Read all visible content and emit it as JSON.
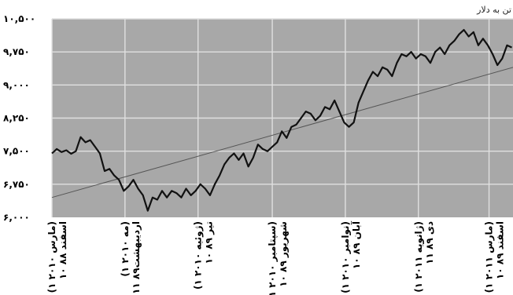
{
  "chart_data": {
    "type": "line",
    "unit_label": "تن به دلار",
    "y_ticks": [
      "۱۰,۵۰۰",
      "۹,۷۵۰",
      "۹,۰۰۰",
      "۸,۲۵۰",
      "۷,۵۰۰",
      "۶,۷۵۰",
      "۶,۰۰۰"
    ],
    "y_tick_values": [
      10500,
      9750,
      9000,
      8250,
      7500,
      6750,
      6000
    ],
    "ylim": [
      6000,
      10500
    ],
    "x_ticks": [
      [
        "۱۰ اسفند ۸۸",
        "(۱ مارس ۲۰۱۰)"
      ],
      [
        "۱۱ اردیبهشت۸۹",
        "(۱ مه ۲۰۱۰)"
      ],
      [
        "۱۰ تیر ۸۹",
        "(۱ ژوئیه ۲۰۱۰)"
      ],
      [
        "۱۰ شهریور ۸۹",
        "(۱ سپتامبر ۲۰۱۰)"
      ],
      [
        "۱۰ آبان ۸۹",
        "(۱ نوامبر ۲۰۱۰)"
      ],
      [
        "۱۱ دی ۸۹",
        "(۱ ژانویه ۲۰۱۱)"
      ],
      [
        "۱۰ اسفند ۸۹",
        "(۱ مارس ۲۰۱۱)"
      ]
    ],
    "x_tick_dates": [
      "2010-03-01",
      "2010-05-01",
      "2010-07-01",
      "2010-09-01",
      "2010-11-01",
      "2011-01-01",
      "2011-03-01"
    ],
    "x_range": [
      "2010-03-01",
      "2011-03-21"
    ],
    "grid": true,
    "colors": {
      "plot_bg": "#a8a8a8",
      "grid": "#e0e0e0",
      "line": "#111111",
      "trend": "#555555"
    },
    "series": [
      {
        "values": [
          [
            "2010-03-01",
            7450
          ],
          [
            "2010-03-05",
            7550
          ],
          [
            "2010-03-09",
            7480
          ],
          [
            "2010-03-13",
            7520
          ],
          [
            "2010-03-17",
            7440
          ],
          [
            "2010-03-21",
            7500
          ],
          [
            "2010-03-25",
            7820
          ],
          [
            "2010-03-29",
            7700
          ],
          [
            "2010-04-02",
            7750
          ],
          [
            "2010-04-06",
            7600
          ],
          [
            "2010-04-10",
            7450
          ],
          [
            "2010-04-14",
            7050
          ],
          [
            "2010-04-18",
            7100
          ],
          [
            "2010-04-22",
            6950
          ],
          [
            "2010-04-26",
            6850
          ],
          [
            "2010-04-30",
            6600
          ],
          [
            "2010-05-04",
            6700
          ],
          [
            "2010-05-08",
            6850
          ],
          [
            "2010-05-12",
            6650
          ],
          [
            "2010-05-16",
            6500
          ],
          [
            "2010-05-20",
            6150
          ],
          [
            "2010-05-24",
            6450
          ],
          [
            "2010-05-28",
            6400
          ],
          [
            "2010-06-01",
            6600
          ],
          [
            "2010-06-05",
            6450
          ],
          [
            "2010-06-09",
            6600
          ],
          [
            "2010-06-13",
            6550
          ],
          [
            "2010-06-17",
            6450
          ],
          [
            "2010-06-21",
            6650
          ],
          [
            "2010-06-25",
            6500
          ],
          [
            "2010-06-29",
            6600
          ],
          [
            "2010-07-03",
            6750
          ],
          [
            "2010-07-07",
            6650
          ],
          [
            "2010-07-11",
            6500
          ],
          [
            "2010-07-15",
            6750
          ],
          [
            "2010-07-19",
            6950
          ],
          [
            "2010-07-23",
            7200
          ],
          [
            "2010-07-27",
            7350
          ],
          [
            "2010-07-31",
            7450
          ],
          [
            "2010-08-04",
            7300
          ],
          [
            "2010-08-08",
            7450
          ],
          [
            "2010-08-12",
            7150
          ],
          [
            "2010-08-16",
            7350
          ],
          [
            "2010-08-20",
            7650
          ],
          [
            "2010-08-24",
            7550
          ],
          [
            "2010-08-28",
            7500
          ],
          [
            "2010-09-01",
            7600
          ],
          [
            "2010-09-05",
            7700
          ],
          [
            "2010-09-09",
            7950
          ],
          [
            "2010-09-13",
            7800
          ],
          [
            "2010-09-17",
            8050
          ],
          [
            "2010-09-21",
            8100
          ],
          [
            "2010-09-25",
            8250
          ],
          [
            "2010-09-29",
            8400
          ],
          [
            "2010-10-03",
            8350
          ],
          [
            "2010-10-07",
            8200
          ],
          [
            "2010-10-11",
            8300
          ],
          [
            "2010-10-15",
            8500
          ],
          [
            "2010-10-19",
            8450
          ],
          [
            "2010-10-23",
            8650
          ],
          [
            "2010-10-27",
            8400
          ],
          [
            "2010-10-31",
            8150
          ],
          [
            "2010-11-04",
            8050
          ],
          [
            "2010-11-08",
            8150
          ],
          [
            "2010-11-12",
            8600
          ],
          [
            "2010-11-16",
            8850
          ],
          [
            "2010-11-20",
            9100
          ],
          [
            "2010-11-24",
            9300
          ],
          [
            "2010-11-28",
            9200
          ],
          [
            "2010-12-02",
            9400
          ],
          [
            "2010-12-06",
            9350
          ],
          [
            "2010-12-10",
            9200
          ],
          [
            "2010-12-14",
            9500
          ],
          [
            "2010-12-18",
            9700
          ],
          [
            "2010-12-22",
            9650
          ],
          [
            "2010-12-26",
            9750
          ],
          [
            "2010-12-30",
            9600
          ],
          [
            "2011-01-03",
            9700
          ],
          [
            "2011-01-07",
            9650
          ],
          [
            "2011-01-11",
            9500
          ],
          [
            "2011-01-15",
            9750
          ],
          [
            "2011-01-19",
            9850
          ],
          [
            "2011-01-23",
            9700
          ],
          [
            "2011-01-27",
            9900
          ],
          [
            "2011-01-31",
            10000
          ],
          [
            "2011-02-04",
            10150
          ],
          [
            "2011-02-08",
            10250
          ],
          [
            "2011-02-12",
            10100
          ],
          [
            "2011-02-16",
            10200
          ],
          [
            "2011-02-20",
            9900
          ],
          [
            "2011-02-24",
            10050
          ],
          [
            "2011-02-28",
            9900
          ],
          [
            "2011-03-04",
            9700
          ],
          [
            "2011-03-08",
            9450
          ],
          [
            "2011-03-12",
            9600
          ],
          [
            "2011-03-16",
            9900
          ],
          [
            "2011-03-20",
            9850
          ]
        ]
      }
    ],
    "trend_line": {
      "values": [
        [
          "2010-03-01",
          6450
        ],
        [
          "2011-03-21",
          9400
        ]
      ]
    }
  }
}
